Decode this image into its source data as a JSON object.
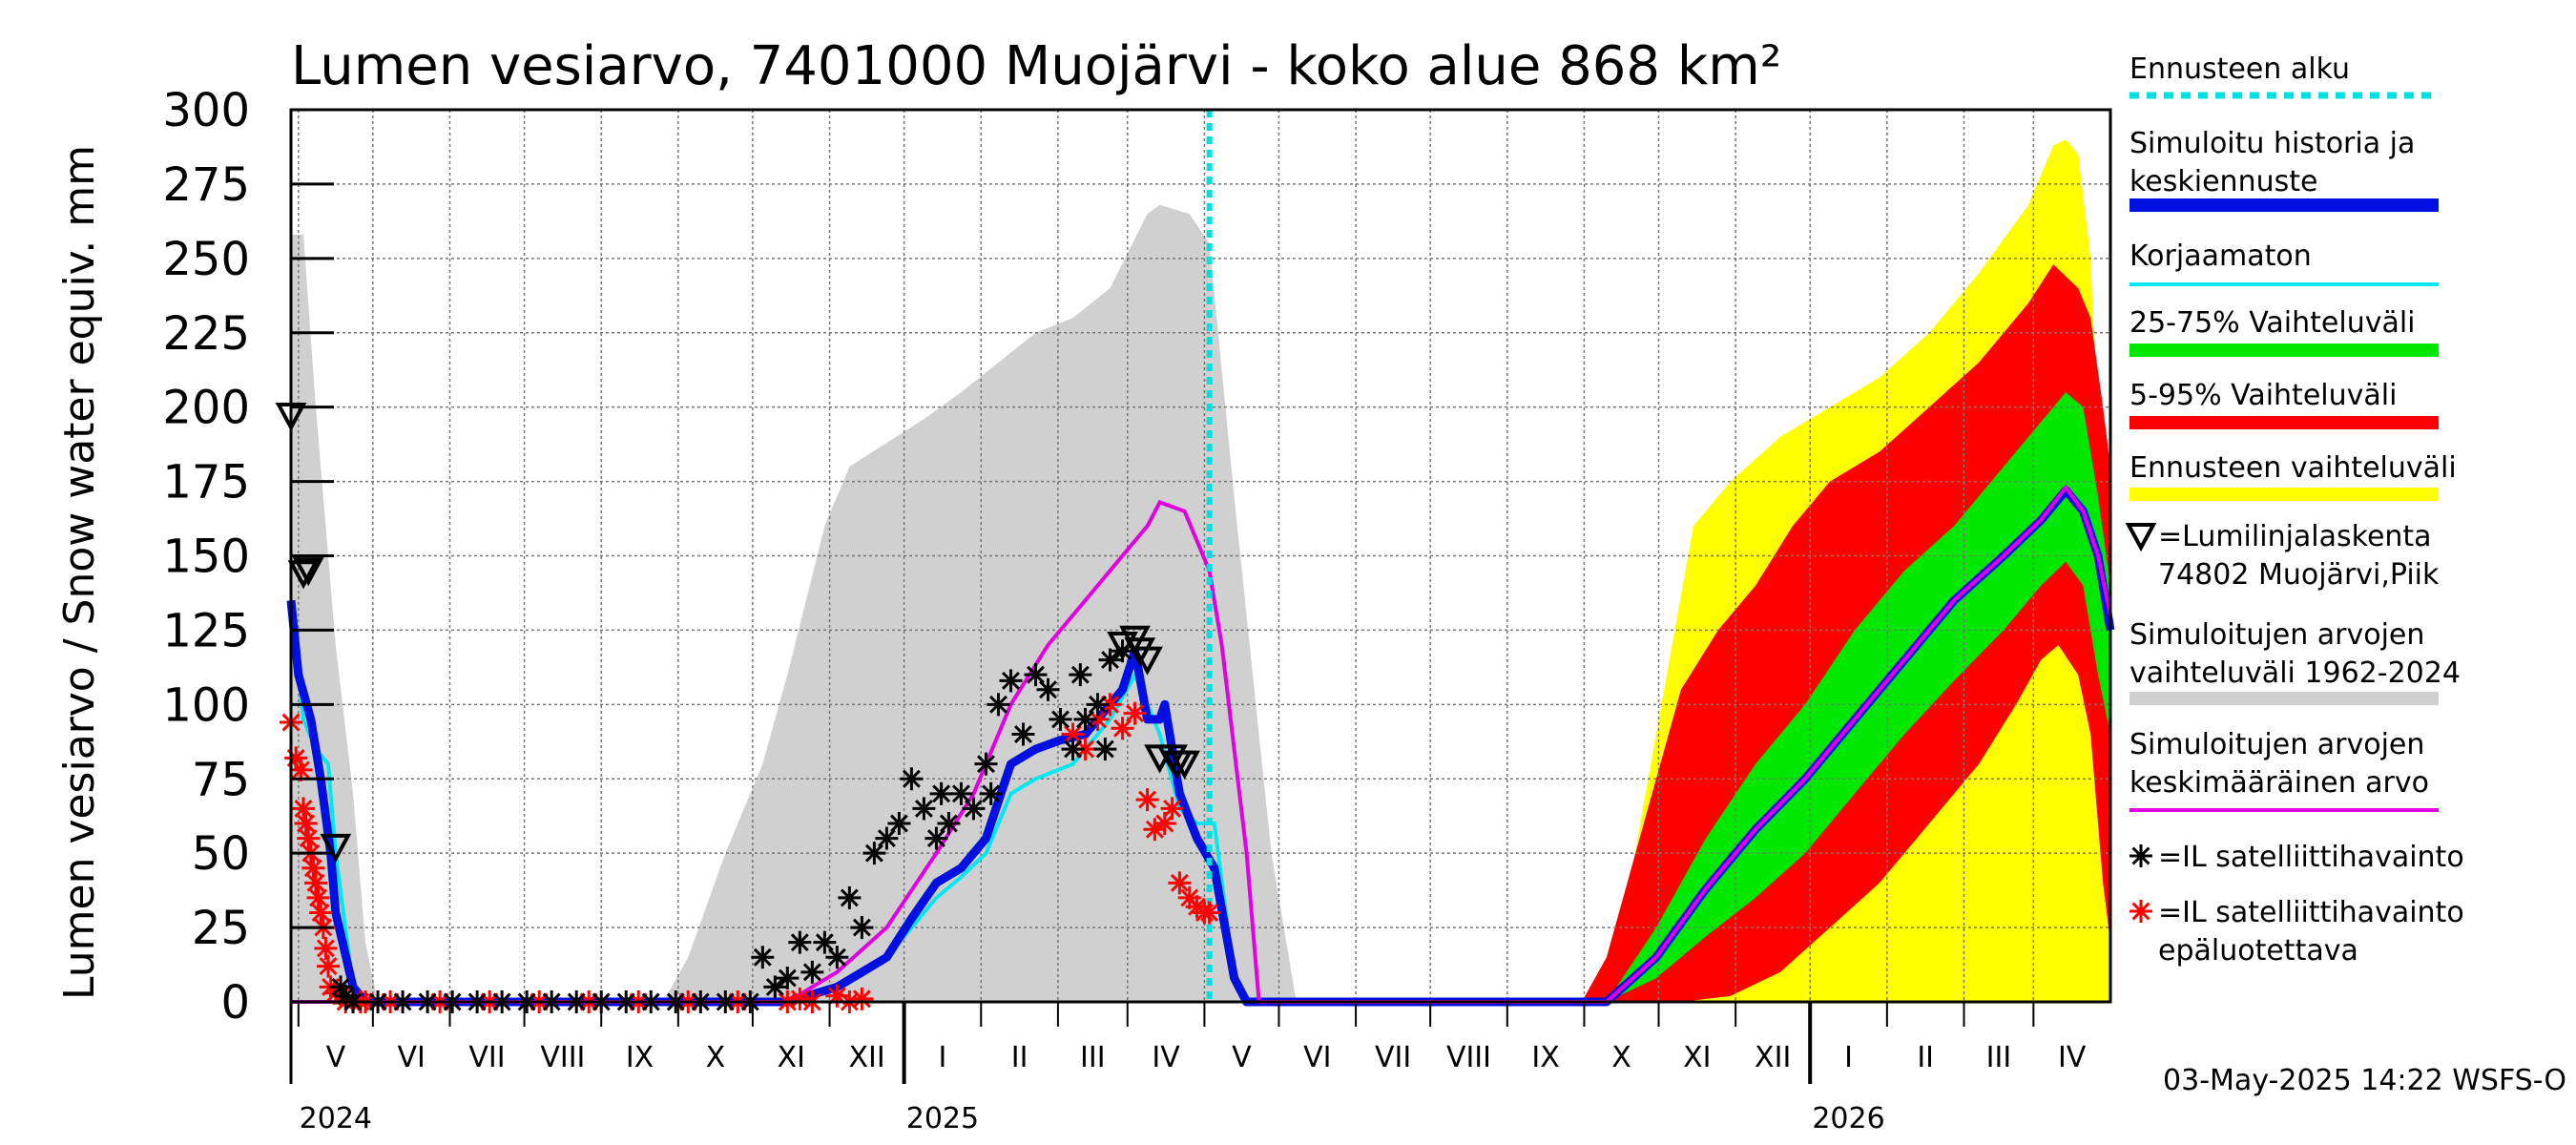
{
  "chart_data": {
    "type": "area",
    "title": "Lumen vesiarvo, 7401000 Muojärvi - koko alue 868 km²",
    "ylabel": "Lumen vesiarvo / Snow water equiv.    mm",
    "ylim": [
      0,
      300
    ],
    "yticks": [
      "0",
      "25",
      "50",
      "75",
      "100",
      "125",
      "150",
      "175",
      "200",
      "225",
      "250",
      "275",
      "300"
    ],
    "months": [
      "V",
      "VI",
      "VII",
      "VIII",
      "IX",
      "X",
      "XI",
      "XII",
      "I",
      "II",
      "III",
      "IV",
      "V",
      "VI",
      "VII",
      "VIII",
      "IX",
      "X",
      "XI",
      "XII",
      "I",
      "II",
      "III",
      "IV"
    ],
    "years": [
      {
        "label": "2024",
        "month_index": 0
      },
      {
        "label": "2025",
        "month_index": 8
      },
      {
        "label": "2026",
        "month_index": 20
      }
    ],
    "x_unit": "days since 2024-04-28",
    "x_range": [
      0,
      733
    ],
    "forecast_start_day": 370,
    "colors": {
      "forecast_line": "#00e0e0",
      "history": "#0010e0",
      "uncorrected": "#00e8f0",
      "p25_75": "#00e800",
      "p5_95": "#ff0000",
      "forecast_range": "#ffff00",
      "sim_range": "#d0d0d0",
      "mean": "#e000e0",
      "obs": "#000000",
      "obs_unreliable": "#ff0000"
    },
    "legend": [
      {
        "label": "Ennusteen alku",
        "style": "dash",
        "color": "#00e0e0"
      },
      {
        "label": "Simuloitu historia ja keskiennuste",
        "style": "thick",
        "color": "#0010e0"
      },
      {
        "label": "Korjaamaton",
        "style": "line",
        "color": "#00e8f0"
      },
      {
        "label": "25-75% Vaihteluväli",
        "style": "thick",
        "color": "#00e800"
      },
      {
        "label": "5-95% Vaihteluväli",
        "style": "thick",
        "color": "#ff0000"
      },
      {
        "label": "Ennusteen vaihteluväli",
        "style": "thick",
        "color": "#ffff00"
      },
      {
        "label": "=Lumilinjalaskenta 74802 Muojärvi,Piik",
        "style": "triangle",
        "color": "#000000"
      },
      {
        "label": "Simuloitujen arvojen vaihteluväli 1962-2024",
        "style": "thick",
        "color": "#d0d0d0"
      },
      {
        "label": "Simuloitujen arvojen keskimääräinen arvo",
        "style": "line",
        "color": "#e000e0"
      },
      {
        "label": "=IL satelliittihavainto",
        "style": "star",
        "color": "#000000"
      },
      {
        "label": "=IL satelliittihavainto epäluotettava",
        "style": "star",
        "color": "#ff0000"
      }
    ],
    "series": [
      {
        "name": "Simuloitujen arvojen vaihteluväli 1962-2024 (upper)",
        "x": [
          0,
          5,
          10,
          18,
          25,
          30,
          35,
          40,
          150,
          160,
          175,
          190,
          200,
          215,
          225,
          240,
          255,
          270,
          285,
          300,
          315,
          330,
          345,
          350,
          362,
          370,
          380,
          395,
          405,
          530,
          540,
          555,
          570,
          585,
          600,
          615,
          630,
          645,
          660,
          675,
          690,
          705,
          720,
          725,
          730,
          733
        ],
        "y": [
          258,
          258,
          200,
          120,
          70,
          20,
          0,
          0,
          0,
          15,
          50,
          80,
          110,
          160,
          180,
          188,
          196,
          205,
          215,
          225,
          230,
          240,
          265,
          268,
          265,
          255,
          170,
          50,
          0,
          0,
          15,
          60,
          120,
          160,
          175,
          185,
          200,
          210,
          225,
          238,
          255,
          270,
          265,
          240,
          180,
          150
        ]
      },
      {
        "name": "Simuloitujen arvojen vaihteluväli 1962-2024 (lower)",
        "x": [
          0,
          733
        ],
        "y": [
          0,
          0
        ]
      },
      {
        "name": "Ennusteen vaihteluväli (upper)",
        "x": [
          520,
          535,
          550,
          565,
          580,
          600,
          620,
          640,
          660,
          680,
          700,
          710,
          715,
          720,
          725,
          730,
          733
        ],
        "y": [
          0,
          20,
          90,
          160,
          175,
          190,
          200,
          210,
          225,
          245,
          268,
          288,
          290,
          285,
          250,
          150,
          100
        ]
      },
      {
        "name": "Ennusteen vaihteluväli (lower)",
        "x": [
          520,
          733
        ],
        "y": [
          0,
          0
        ]
      },
      {
        "name": "5-95% Vaihteluväli (upper)",
        "x": [
          520,
          530,
          545,
          560,
          575,
          590,
          605,
          620,
          640,
          660,
          680,
          700,
          710,
          720,
          725,
          730,
          733
        ],
        "y": [
          0,
          15,
          60,
          105,
          125,
          140,
          160,
          175,
          185,
          200,
          215,
          235,
          248,
          240,
          230,
          200,
          180
        ]
      },
      {
        "name": "5-95% Vaihteluväli (lower)",
        "x": [
          520,
          560,
          580,
          600,
          620,
          640,
          660,
          680,
          695,
          705,
          712,
          720,
          725,
          730,
          733
        ],
        "y": [
          0,
          0,
          2,
          10,
          25,
          40,
          60,
          80,
          100,
          115,
          120,
          110,
          90,
          40,
          20
        ]
      },
      {
        "name": "25-75% Vaihteluväli (upper)",
        "x": [
          530,
          550,
          570,
          590,
          610,
          630,
          650,
          670,
          690,
          705,
          715,
          722,
          728,
          733
        ],
        "y": [
          0,
          25,
          55,
          80,
          100,
          125,
          145,
          160,
          180,
          195,
          205,
          200,
          170,
          140
        ]
      },
      {
        "name": "25-75% Vaihteluväli (lower)",
        "x": [
          530,
          550,
          570,
          590,
          610,
          630,
          650,
          670,
          690,
          705,
          715,
          722,
          728,
          733
        ],
        "y": [
          0,
          8,
          22,
          35,
          50,
          70,
          90,
          108,
          125,
          140,
          148,
          140,
          110,
          90
        ]
      },
      {
        "name": "Simuloitu historia ja keskiennuste",
        "x": [
          0,
          3,
          8,
          12,
          16,
          18,
          25,
          30,
          35,
          200,
          220,
          240,
          250,
          260,
          270,
          280,
          290,
          300,
          310,
          320,
          335,
          340,
          345,
          350,
          352,
          358,
          365,
          372,
          380,
          385,
          390,
          530,
          550,
          570,
          590,
          610,
          630,
          650,
          670,
          690,
          705,
          715,
          722,
          728,
          733
        ],
        "y": [
          135,
          110,
          95,
          75,
          50,
          30,
          5,
          0,
          0,
          0,
          5,
          15,
          28,
          40,
          45,
          55,
          80,
          85,
          88,
          90,
          105,
          118,
          95,
          95,
          100,
          70,
          55,
          45,
          8,
          0,
          0,
          0,
          15,
          38,
          58,
          75,
          95,
          115,
          135,
          150,
          162,
          172,
          165,
          150,
          125
        ]
      },
      {
        "name": "Korjaamaton",
        "x": [
          0,
          5,
          10,
          15,
          18,
          25,
          30,
          130,
          140,
          200,
          220,
          240,
          250,
          260,
          270,
          280,
          290,
          300,
          315,
          330,
          340,
          350,
          358,
          365,
          372,
          380,
          385
        ],
        "y": [
          135,
          95,
          85,
          80,
          50,
          5,
          0,
          0,
          0,
          0,
          5,
          15,
          25,
          35,
          42,
          50,
          70,
          75,
          80,
          95,
          110,
          90,
          65,
          60,
          60,
          8,
          0
        ]
      },
      {
        "name": "Simuloitujen arvojen keskimääräinen arvo",
        "x": [
          0,
          200,
          220,
          240,
          260,
          275,
          290,
          305,
          320,
          335,
          345,
          350,
          360,
          370,
          375,
          385,
          390,
          530,
          550,
          570,
          590,
          610,
          630,
          650,
          670,
          690,
          705,
          715,
          722,
          728,
          733
        ],
        "y": [
          0,
          0,
          10,
          25,
          50,
          70,
          100,
          120,
          135,
          150,
          160,
          168,
          165,
          145,
          120,
          50,
          0,
          0,
          15,
          38,
          58,
          75,
          95,
          115,
          135,
          150,
          162,
          173,
          165,
          150,
          130
        ]
      }
    ],
    "obs_lumilinja": {
      "x": [
        0,
        5,
        7,
        18,
        335,
        340,
        342,
        345,
        355,
        357,
        360,
        350
      ],
      "y": [
        197,
        144,
        145,
        52,
        120,
        122,
        118,
        115,
        82,
        80,
        80,
        82
      ]
    },
    "obs_satellite": {
      "x": [
        20,
        22,
        25,
        35,
        45,
        55,
        65,
        75,
        85,
        95,
        105,
        115,
        125,
        135,
        145,
        155,
        165,
        175,
        185,
        190,
        195,
        200,
        205,
        210,
        215,
        220,
        225,
        230,
        235,
        240,
        245,
        250,
        255,
        260,
        262,
        265,
        270,
        275,
        280,
        282,
        285,
        290,
        295,
        300,
        305,
        310,
        315,
        318,
        320,
        325,
        328,
        330,
        335
      ],
      "y": [
        5,
        2,
        0,
        0,
        0,
        0,
        0,
        0,
        0,
        0,
        0,
        0,
        0,
        0,
        0,
        0,
        0,
        0,
        0,
        15,
        5,
        8,
        20,
        10,
        20,
        15,
        35,
        25,
        50,
        55,
        60,
        75,
        65,
        55,
        70,
        60,
        70,
        65,
        80,
        70,
        100,
        108,
        90,
        110,
        105,
        95,
        85,
        110,
        95,
        100,
        85,
        115,
        118
      ]
    },
    "obs_satellite_unreliable": {
      "x": [
        0,
        2,
        4,
        5,
        6,
        7,
        8,
        9,
        10,
        11,
        12,
        13,
        14,
        15,
        16,
        18,
        20,
        22,
        25,
        28,
        30,
        40,
        60,
        80,
        100,
        120,
        140,
        160,
        180,
        200,
        205,
        210,
        220,
        225,
        230,
        315,
        320,
        325,
        330,
        335,
        340,
        345,
        348,
        352,
        355,
        358,
        362,
        365,
        368,
        370
      ],
      "y": [
        94,
        82,
        78,
        65,
        60,
        55,
        50,
        45,
        40,
        35,
        30,
        25,
        18,
        12,
        5,
        3,
        2,
        0,
        0,
        0,
        0,
        0,
        0,
        0,
        0,
        0,
        0,
        0,
        0,
        0,
        1,
        0,
        2,
        0,
        1,
        90,
        85,
        95,
        100,
        92,
        97,
        68,
        58,
        60,
        65,
        40,
        35,
        32,
        30,
        30
      ]
    },
    "timestamp": "03-May-2025 14:22 WSFS-O"
  }
}
